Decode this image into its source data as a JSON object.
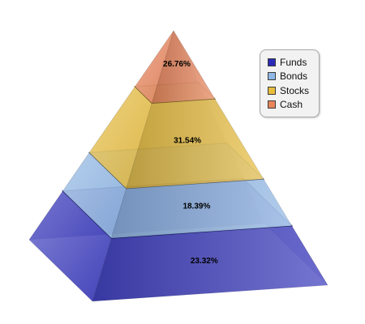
{
  "chart_data": {
    "type": "pyramid",
    "title": "",
    "legend_position": "top-right",
    "series": [
      {
        "name": "Funds",
        "value": 23.32,
        "label": "23.32%",
        "color": "#2a2ab8"
      },
      {
        "name": "Bonds",
        "value": 18.39,
        "label": "18.39%",
        "color": "#8fb7e6"
      },
      {
        "name": "Stocks",
        "value": 31.54,
        "label": "31.54%",
        "color": "#e8bd3e"
      },
      {
        "name": "Cash",
        "value": 26.76,
        "label": "26.76%",
        "color": "#e9845a"
      }
    ]
  }
}
